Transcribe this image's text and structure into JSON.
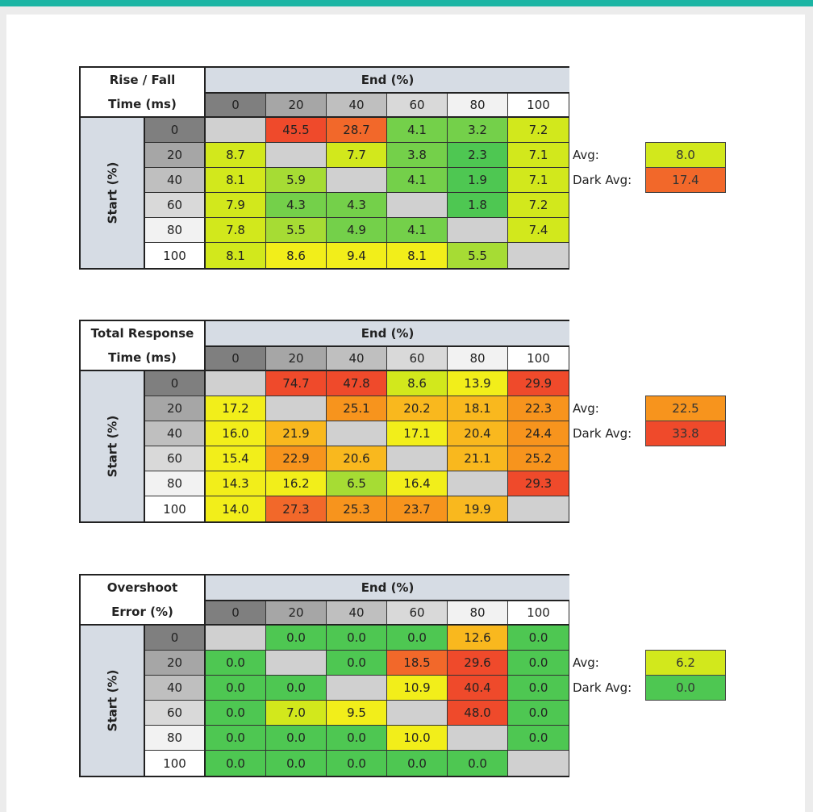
{
  "palette": {
    "gr": "#d0d0d0",
    "R": "#ef4a2b",
    "RO": "#f2682a",
    "O": "#f7941d",
    "OY": "#f9b81e",
    "Y": "#f2ee1a",
    "YG": "#d2e81c",
    "LG": "#a6dc34",
    "G": "#74d04a",
    "DG": "#4ec752"
  },
  "header_shades": [
    "#7f7f7f",
    "#a6a6a6",
    "#bfbfbf",
    "#d9d9d9",
    "#f2f2f2",
    "#ffffff"
  ],
  "chart_data": [
    {
      "type": "table",
      "title_line1": "Rise / Fall",
      "title_line2": "Time (ms)",
      "col_label": "End (%)",
      "row_label": "Start (%)",
      "cols": [
        "0",
        "20",
        "40",
        "60",
        "80",
        "100"
      ],
      "rows": [
        "0",
        "20",
        "40",
        "60",
        "80",
        "100"
      ],
      "values": [
        [
          "",
          "45.5",
          "28.7",
          "4.1",
          "3.2",
          "7.2"
        ],
        [
          "8.7",
          "",
          "7.7",
          "3.8",
          "2.3",
          "7.1"
        ],
        [
          "8.1",
          "5.9",
          "",
          "4.1",
          "1.9",
          "7.1"
        ],
        [
          "7.9",
          "4.3",
          "4.3",
          "",
          "1.8",
          "7.2"
        ],
        [
          "7.8",
          "5.5",
          "4.9",
          "4.1",
          "",
          "7.4"
        ],
        [
          "8.1",
          "8.6",
          "9.4",
          "8.1",
          "5.5",
          ""
        ]
      ],
      "colors": [
        [
          "gr",
          "R",
          "RO",
          "G",
          "G",
          "YG"
        ],
        [
          "YG",
          "gr",
          "YG",
          "G",
          "DG",
          "YG"
        ],
        [
          "YG",
          "LG",
          "gr",
          "G",
          "DG",
          "YG"
        ],
        [
          "YG",
          "G",
          "G",
          "gr",
          "DG",
          "YG"
        ],
        [
          "YG",
          "LG",
          "G",
          "G",
          "gr",
          "YG"
        ],
        [
          "YG",
          "Y",
          "Y",
          "Y",
          "LG",
          "gr"
        ]
      ],
      "avg_label": "Avg:",
      "avg": "8.0",
      "avg_color": "YG",
      "dark_avg_label": "Dark Avg:",
      "dark_avg": "17.4",
      "dark_avg_color": "RO"
    },
    {
      "type": "table",
      "title_line1": "Total Response",
      "title_line2": "Time (ms)",
      "col_label": "End (%)",
      "row_label": "Start (%)",
      "cols": [
        "0",
        "20",
        "40",
        "60",
        "80",
        "100"
      ],
      "rows": [
        "0",
        "20",
        "40",
        "60",
        "80",
        "100"
      ],
      "values": [
        [
          "",
          "74.7",
          "47.8",
          "8.6",
          "13.9",
          "29.9"
        ],
        [
          "17.2",
          "",
          "25.1",
          "20.2",
          "18.1",
          "22.3"
        ],
        [
          "16.0",
          "21.9",
          "",
          "17.1",
          "20.4",
          "24.4"
        ],
        [
          "15.4",
          "22.9",
          "20.6",
          "",
          "21.1",
          "25.2"
        ],
        [
          "14.3",
          "16.2",
          "6.5",
          "16.4",
          "",
          "29.3"
        ],
        [
          "14.0",
          "27.3",
          "25.3",
          "23.7",
          "19.9",
          ""
        ]
      ],
      "colors": [
        [
          "gr",
          "R",
          "R",
          "YG",
          "Y",
          "R"
        ],
        [
          "Y",
          "gr",
          "O",
          "OY",
          "OY",
          "O"
        ],
        [
          "Y",
          "OY",
          "gr",
          "Y",
          "OY",
          "O"
        ],
        [
          "Y",
          "O",
          "OY",
          "gr",
          "OY",
          "O"
        ],
        [
          "Y",
          "Y",
          "LG",
          "Y",
          "gr",
          "R"
        ],
        [
          "Y",
          "RO",
          "O",
          "O",
          "OY",
          "gr"
        ]
      ],
      "avg_label": "Avg:",
      "avg": "22.5",
      "avg_color": "O",
      "dark_avg_label": "Dark Avg:",
      "dark_avg": "33.8",
      "dark_avg_color": "R"
    },
    {
      "type": "table",
      "title_line1": "Overshoot",
      "title_line2": "Error (%)",
      "col_label": "End (%)",
      "row_label": "Start (%)",
      "cols": [
        "0",
        "20",
        "40",
        "60",
        "80",
        "100"
      ],
      "rows": [
        "0",
        "20",
        "40",
        "60",
        "80",
        "100"
      ],
      "values": [
        [
          "",
          "0.0",
          "0.0",
          "0.0",
          "12.6",
          "0.0"
        ],
        [
          "0.0",
          "",
          "0.0",
          "18.5",
          "29.6",
          "0.0"
        ],
        [
          "0.0",
          "0.0",
          "",
          "10.9",
          "40.4",
          "0.0"
        ],
        [
          "0.0",
          "7.0",
          "9.5",
          "",
          "48.0",
          "0.0"
        ],
        [
          "0.0",
          "0.0",
          "0.0",
          "10.0",
          "",
          "0.0"
        ],
        [
          "0.0",
          "0.0",
          "0.0",
          "0.0",
          "0.0",
          ""
        ]
      ],
      "colors": [
        [
          "gr",
          "DG",
          "DG",
          "DG",
          "OY",
          "DG"
        ],
        [
          "DG",
          "gr",
          "DG",
          "RO",
          "R",
          "DG"
        ],
        [
          "DG",
          "DG",
          "gr",
          "Y",
          "R",
          "DG"
        ],
        [
          "DG",
          "YG",
          "Y",
          "gr",
          "R",
          "DG"
        ],
        [
          "DG",
          "DG",
          "DG",
          "Y",
          "gr",
          "DG"
        ],
        [
          "DG",
          "DG",
          "DG",
          "DG",
          "DG",
          "gr"
        ]
      ],
      "avg_label": "Avg:",
      "avg": "6.2",
      "avg_color": "YG",
      "dark_avg_label": "Dark Avg:",
      "dark_avg": "0.0",
      "dark_avg_color": "DG"
    }
  ]
}
